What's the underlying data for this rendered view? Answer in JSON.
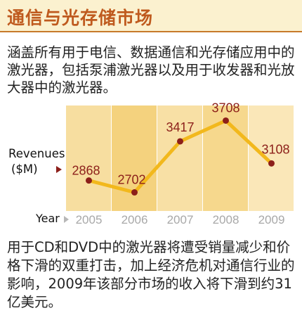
{
  "header": {
    "title": "通信与光存储市场"
  },
  "intro_text": "涵盖所有用于电信、数据通信和光存储应用中的激光器，包括泵浦激光器以及用于收发器和光放大器中的激光器。",
  "colors": {
    "header_bg": "#fbf1cf",
    "title": "#bf5a1e",
    "line": "#f2b81c",
    "marker": "#8c1f1a",
    "value_label": "#8c1f1a",
    "year_label": "#a8a8a8"
  },
  "chart_data": {
    "type": "line",
    "title": "",
    "xlabel": "Year",
    "ylabel": "Revenues ($M)",
    "y_label_line1": "Revenues",
    "y_label_line2": "($M)",
    "categories": [
      "2005",
      "2006",
      "2007",
      "2008",
      "2009"
    ],
    "series": [
      {
        "values": [
          2868,
          2702,
          3417,
          3708,
          3108
        ]
      }
    ],
    "value_labels": [
      "2868",
      "2702",
      "3417",
      "3708",
      "3108"
    ],
    "ylim": [
      2500,
      3900
    ],
    "grid": false,
    "legend": "none"
  },
  "body_text": "用于CD和DVD中的激光器将遭受销量减少和价格下滑的双重打击，加上经济危机对通信行业的影响，2009年该部分市场的收入将下滑到约31亿美元。"
}
